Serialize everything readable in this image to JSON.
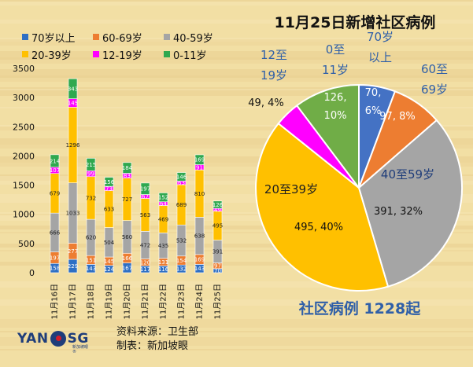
{
  "chart_data": [
    {
      "type": "bar",
      "stacked": true,
      "categories": [
        "11月16日",
        "11月17日",
        "11月18日",
        "11月19日",
        "11月20日",
        "11月21日",
        "11月22日",
        "11月23日",
        "11月24日",
        "11月25日"
      ],
      "series": [
        {
          "name": "70岁以上",
          "color": "#2e6fc4",
          "values": [
            158,
            229,
            143,
            124,
            167,
            117,
            116,
            132,
            143,
            70
          ]
        },
        {
          "name": "60-69岁",
          "color": "#ed7d31",
          "values": [
            197,
            277,
            151,
            145,
            166,
            120,
            131,
            154,
            169,
            97
          ]
        },
        {
          "name": "40-59岁",
          "color": "#a5a5a5",
          "values": [
            666,
            1033,
            620,
            504,
            560,
            472,
            435,
            532,
            638,
            391
          ]
        },
        {
          "name": "20-39岁",
          "color": "#ffc000",
          "values": [
            679,
            1296,
            732,
            633,
            727,
            563,
            469,
            689,
            810,
            495
          ]
        },
        {
          "name": "12-19岁",
          "color": "#ff00ff",
          "values": [
            107,
            145,
            99,
            73,
            83,
            67,
            64,
            63,
            91,
            49
          ]
        },
        {
          "name": "0-11岁",
          "color": "#2fa84f",
          "values": [
            214,
            343,
            215,
            156,
            184,
            197,
            152,
            146,
            169,
            126
          ]
        }
      ],
      "ylim": [
        0,
        3500
      ],
      "yticks": [
        0,
        500,
        1000,
        1500,
        2000,
        2500,
        3000,
        3500
      ],
      "grid": false,
      "legend_position": "top"
    },
    {
      "type": "pie",
      "title": "11月25日新增社区病例",
      "summary": "社区病例 1228起",
      "slices": [
        {
          "label": "70岁以上",
          "value": 70,
          "percent": "6%",
          "color": "#4472c4"
        },
        {
          "label": "60至69岁",
          "value": 97,
          "percent": "8%",
          "color": "#ed7d31"
        },
        {
          "label": "40至59岁",
          "value": 391,
          "percent": "32%",
          "color": "#a5a5a5"
        },
        {
          "label": "20至39岁",
          "value": 495,
          "percent": "40%",
          "color": "#ffc000"
        },
        {
          "label": "12至19岁",
          "value": 49,
          "percent": "4%",
          "color": "#ff00ff"
        },
        {
          "label": "0至11岁",
          "value": 126,
          "percent": "10%",
          "color": "#70ad47"
        }
      ]
    }
  ],
  "source": {
    "data_source": "资料来源：卫生部",
    "made_by": "制表：新加坡眼"
  },
  "logo": {
    "left": "YAN",
    "right": "SG",
    "sub": "新加坡眼®"
  }
}
